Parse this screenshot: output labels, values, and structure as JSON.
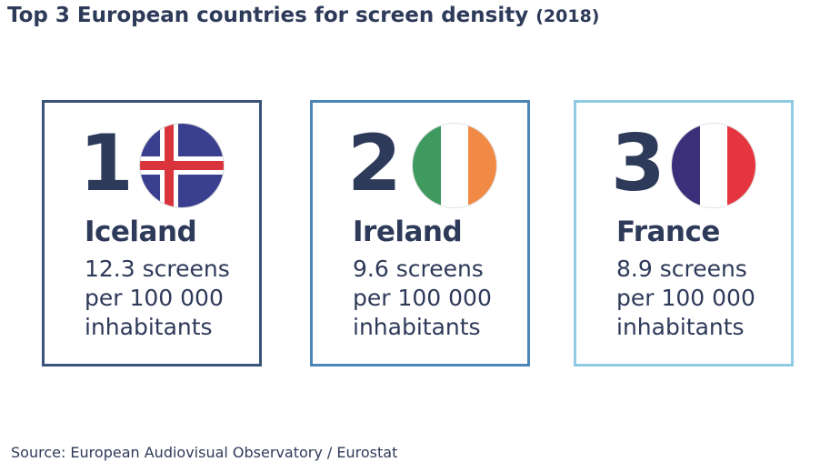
{
  "title": "Top 3 European countries for screen density",
  "title_year": "(2018)",
  "source": "Source: European Audiovisual Observatory / Eurostat",
  "chart_data": {
    "type": "table",
    "title": "Top 3 European countries for screen density (2018)",
    "unit": "screens per 100 000 inhabitants",
    "rows": [
      {
        "rank": "1",
        "country": "Iceland",
        "value": 12.3,
        "value_text": "12.3 screens",
        "line2": "per 100 000",
        "line3": "inhabitants",
        "flag": "iceland-flag-icon",
        "border_color": "#3a5378"
      },
      {
        "rank": "2",
        "country": "Ireland",
        "value": 9.6,
        "value_text": "9.6 screens",
        "line2": "per 100 000",
        "line3": "inhabitants",
        "flag": "ireland-flag-icon",
        "border_color": "#4b86b8"
      },
      {
        "rank": "3",
        "country": "France",
        "value": 8.9,
        "value_text": "8.9 screens",
        "line2": "per 100 000",
        "line3": "inhabitants",
        "flag": "france-flag-icon",
        "border_color": "#8fcbe3"
      }
    ]
  },
  "flag_colors": {
    "iceland_blue": "#3a3f8f",
    "iceland_white": "#ffffff",
    "iceland_red": "#d9343b",
    "ireland_green": "#3e9a5f",
    "ireland_white": "#ffffff",
    "ireland_orange": "#f08a44",
    "france_blue": "#3b2f7a",
    "france_white": "#ffffff",
    "france_red": "#e5363f"
  }
}
